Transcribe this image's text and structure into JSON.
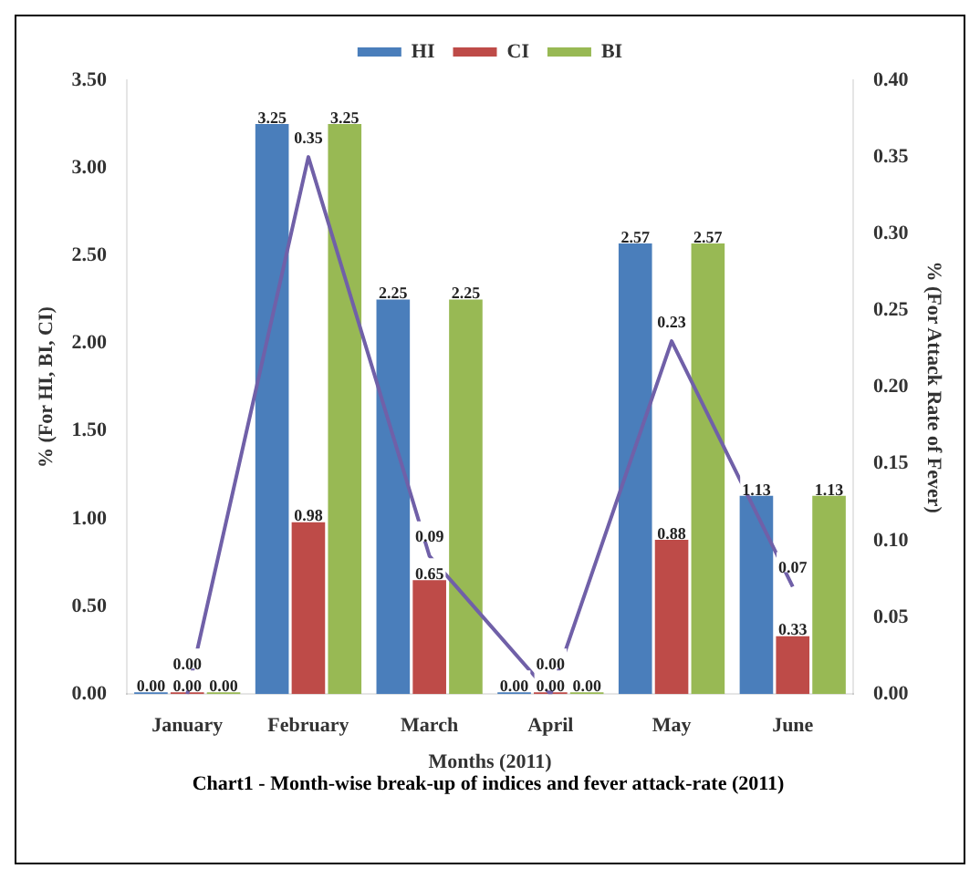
{
  "chart_data": {
    "type": "bar",
    "annotations": [
      "Chart1 - Month-wise break-up of indices and fever attack-rate (2011)"
    ],
    "xlabel": "Months (2011)",
    "ylabel": "% (For HI, BI, CI)",
    "y2label": "% (For Attack Rate of Fever)",
    "categories": [
      "January",
      "February",
      "March",
      "April",
      "May",
      "June"
    ],
    "series": [
      {
        "name": "HI",
        "color": "#4a7ebb",
        "values": [
          0,
          3.25,
          2.25,
          0,
          2.57,
          1.13
        ],
        "value_labels": [
          "0.00",
          "3.25",
          "2.25",
          "0.00",
          "2.57",
          "1.13"
        ]
      },
      {
        "name": "CI",
        "color": "#be4b48",
        "values": [
          0,
          0.98,
          0.65,
          0,
          0.88,
          0.33
        ],
        "value_labels": [
          "0.00",
          "0.98",
          "0.65",
          "0.00",
          "0.88",
          "0.33"
        ]
      },
      {
        "name": "BI",
        "color": "#98b954",
        "values": [
          0,
          3.25,
          2.25,
          0,
          2.57,
          1.13
        ],
        "value_labels": [
          "0.00",
          "3.25",
          "2.25",
          "0.00",
          "2.57",
          "1.13"
        ]
      },
      {
        "type": "line",
        "axis": "y2",
        "color": "#7060a8",
        "values": [
          0,
          0.35,
          0.09,
          0,
          0.23,
          0.07
        ],
        "value_labels": [
          "0.00",
          "0.35",
          "0.09",
          "0.00",
          "0.23",
          "0.07"
        ]
      }
    ],
    "ylim": [
      0,
      3.5
    ],
    "yticks": [
      {
        "value": 0,
        "label": "0.00"
      },
      {
        "value": 0.5,
        "label": "0.50"
      },
      {
        "value": 1,
        "label": "1.00"
      },
      {
        "value": 1.5,
        "label": "1.50"
      },
      {
        "value": 2,
        "label": "2.00"
      },
      {
        "value": 2.5,
        "label": "2.50"
      },
      {
        "value": 3,
        "label": "3.00"
      },
      {
        "value": 3.5,
        "label": "3.50"
      }
    ],
    "y2lim": [
      0,
      0.4
    ],
    "y2ticks": [
      {
        "value": 0,
        "label": "0.00"
      },
      {
        "value": 0.05,
        "label": "0.05"
      },
      {
        "value": 0.1,
        "label": "0.10"
      },
      {
        "value": 0.15,
        "label": "0.15"
      },
      {
        "value": 0.2,
        "label": "0.20"
      },
      {
        "value": 0.25,
        "label": "0.25"
      },
      {
        "value": 0.3,
        "label": "0.30"
      },
      {
        "value": 0.35,
        "label": "0.35"
      },
      {
        "value": 0.4,
        "label": "0.40"
      }
    ],
    "legend": "top",
    "grid": false,
    "marker": "none"
  }
}
